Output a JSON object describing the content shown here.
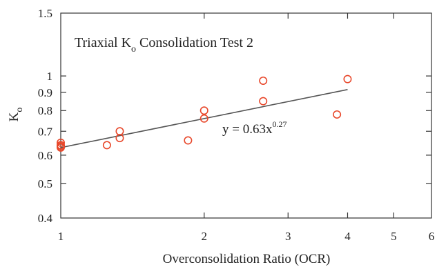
{
  "chart_data": {
    "type": "scatter",
    "title": "Triaxial K",
    "title_sub": "o",
    "title_rest": " Consolidation Test 2",
    "xlabel": "Overconsolidation Ratio (OCR)",
    "ylabel": "K",
    "ylabel_sub": "o",
    "x_scale": "log",
    "y_scale": "log",
    "xlim": [
      1,
      6
    ],
    "ylim": [
      0.4,
      1.5
    ],
    "x_ticks": [
      1,
      2,
      3,
      4,
      5,
      6
    ],
    "x_tick_labels": [
      "1",
      "2",
      "3",
      "4",
      "5",
      "6"
    ],
    "y_ticks": [
      0.4,
      0.5,
      0.6,
      0.7,
      0.8,
      0.9,
      1,
      1.5
    ],
    "y_tick_labels": [
      "0.4",
      "0.5",
      "0.6",
      "0.7",
      "0.8",
      "0.9",
      "1",
      "1.5"
    ],
    "grid": false,
    "series": [
      {
        "color": "#e8472a",
        "marker": "circle-open",
        "points": [
          {
            "x": 1.0,
            "y": 0.64
          },
          {
            "x": 1.0,
            "y": 0.65
          },
          {
            "x": 1.0,
            "y": 0.63
          },
          {
            "x": 1.0,
            "y": 0.635
          },
          {
            "x": 1.25,
            "y": 0.64
          },
          {
            "x": 1.33,
            "y": 0.7
          },
          {
            "x": 1.33,
            "y": 0.67
          },
          {
            "x": 1.85,
            "y": 0.66
          },
          {
            "x": 2.0,
            "y": 0.8
          },
          {
            "x": 2.0,
            "y": 0.76
          },
          {
            "x": 2.66,
            "y": 0.97
          },
          {
            "x": 2.66,
            "y": 0.85
          },
          {
            "x": 3.8,
            "y": 0.78
          },
          {
            "x": 4.0,
            "y": 0.98
          }
        ]
      }
    ],
    "trendline": {
      "coefficient": 0.63,
      "exponent": 0.27,
      "x_range": [
        1,
        4
      ],
      "color": "#555555",
      "label": "y = 0.63x",
      "label_exp": "0.27"
    }
  }
}
